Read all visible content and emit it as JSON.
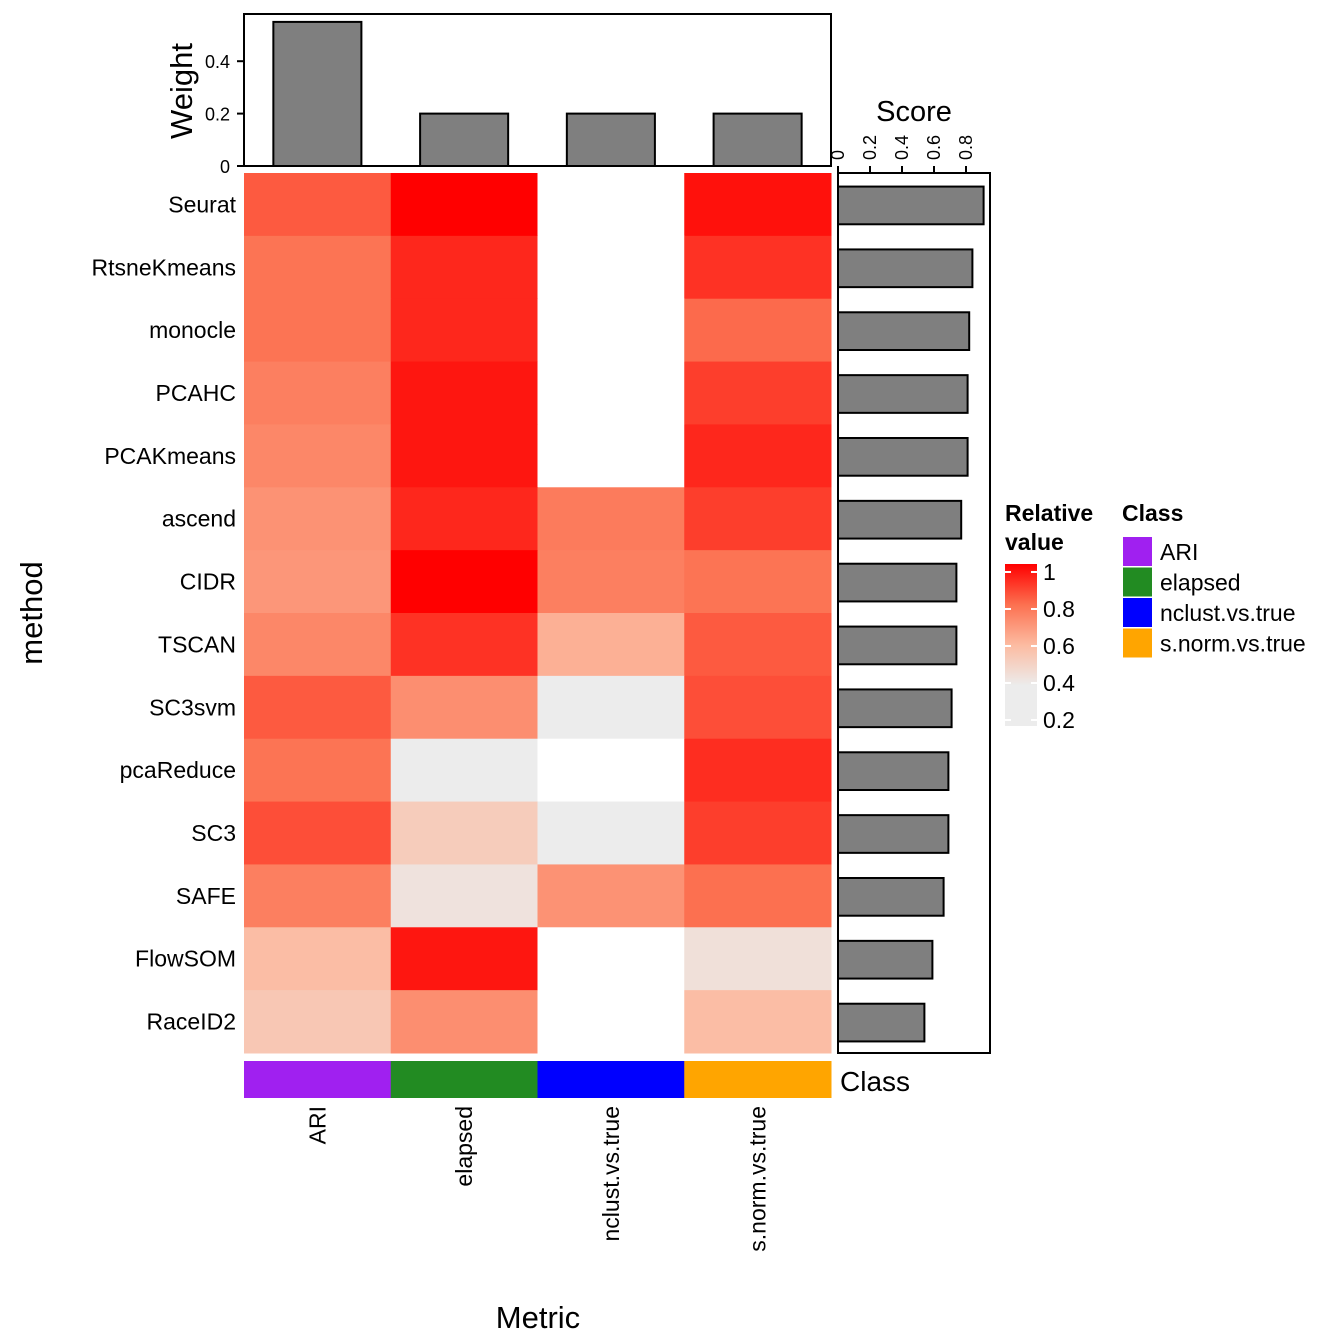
{
  "chart_data": {
    "type": "heatmap",
    "xlabel": "Metric",
    "ylabel": "method",
    "methods": [
      "Seurat",
      "RtsneKmeans",
      "monocle",
      "PCAHC",
      "PCAKmeans",
      "ascend",
      "CIDR",
      "TSCAN",
      "SC3svm",
      "pcaReduce",
      "SC3",
      "SAFE",
      "FlowSOM",
      "RaceID2"
    ],
    "metrics": [
      "ARI",
      "elapsed",
      "nclust.vs.true",
      "s.norm.vs.true"
    ],
    "values": [
      [
        0.84,
        1.0,
        null,
        0.97
      ],
      [
        0.79,
        0.93,
        null,
        0.91
      ],
      [
        0.79,
        0.93,
        null,
        0.81
      ],
      [
        0.76,
        0.96,
        null,
        0.89
      ],
      [
        0.74,
        0.96,
        null,
        0.93
      ],
      [
        0.71,
        0.93,
        0.77,
        0.89
      ],
      [
        0.7,
        1.0,
        0.76,
        0.79
      ],
      [
        0.74,
        0.91,
        0.63,
        0.84
      ],
      [
        0.84,
        0.72,
        0.26,
        0.86
      ],
      [
        0.79,
        0.22,
        null,
        0.92
      ],
      [
        0.86,
        0.53,
        0.26,
        0.89
      ],
      [
        0.76,
        0.44,
        0.71,
        0.8
      ],
      [
        0.59,
        0.96,
        null,
        0.45
      ],
      [
        0.55,
        0.72,
        null,
        0.59
      ]
    ],
    "color_scale": {
      "title": "Relative value",
      "ticks": [
        1,
        0.8,
        0.6,
        0.4,
        0.2
      ],
      "range": [
        0.2,
        1
      ],
      "low_color": "#ececec",
      "mid_color": "#fcbba1",
      "high_color": "#ff0000"
    },
    "class_annotation": {
      "label": "Class",
      "legend_title": "Class",
      "classes": [
        {
          "name": "ARI",
          "color": "#a020f0"
        },
        {
          "name": "elapsed",
          "color": "#228b22"
        },
        {
          "name": "nclust.vs.true",
          "color": "#0000ff"
        },
        {
          "name": "s.norm.vs.true",
          "color": "#ffa500"
        }
      ]
    },
    "weight_bar": {
      "ylabel": "Weight",
      "values": [
        0.55,
        0.2,
        0.2,
        0.2
      ],
      "ylim": [
        0,
        0.58
      ],
      "ticks": [
        "0",
        "0.2",
        "0.4"
      ],
      "bar_color": "#7f7f7f"
    },
    "score_bar": {
      "xlabel": "Score",
      "values": [
        0.91,
        0.84,
        0.82,
        0.81,
        0.81,
        0.77,
        0.74,
        0.74,
        0.71,
        0.69,
        0.69,
        0.66,
        0.59,
        0.54
      ],
      "xlim": [
        0,
        0.95
      ],
      "ticks": [
        "0",
        "0.2",
        "0.4",
        "0.6",
        "0.8"
      ],
      "bar_color": "#7f7f7f"
    }
  }
}
